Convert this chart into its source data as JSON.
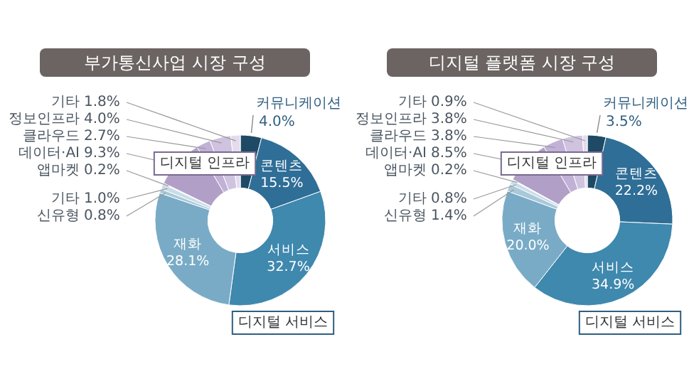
{
  "chart_data": [
    {
      "type": "donut",
      "title": "부가통신사업 시장 구성",
      "categories": [
        "커뮤니케이션",
        "콘텐츠",
        "서비스",
        "재화",
        "신유형",
        "기타",
        "앱마켓",
        "데이터·AI",
        "클라우드",
        "정보인프라",
        "기타"
      ],
      "values": [
        4.0,
        15.5,
        32.7,
        28.1,
        0.8,
        1.0,
        0.2,
        9.3,
        2.7,
        4.0,
        1.8
      ],
      "value_labels": [
        "4.0%",
        "15.5%",
        "32.7%",
        "28.1%",
        "0.8%",
        "1.0%",
        "0.2%",
        "9.3%",
        "2.7%",
        "4.0%",
        "1.8%"
      ],
      "colors": [
        "#1f4a66",
        "#2f6e96",
        "#3f88ae",
        "#79abc6",
        "#a9c9da",
        "#c8dde8",
        "#ece6f2",
        "#b29fc8",
        "#c1b1d6",
        "#cfc3e0",
        "#e4dced"
      ],
      "legend": false,
      "annotations": [
        "디지털 인프라",
        "디지털 서비스"
      ]
    },
    {
      "type": "donut",
      "title": "디지털 플랫폼 시장 구성",
      "categories": [
        "커뮤니케이션",
        "콘텐츠",
        "서비스",
        "재화",
        "신유형",
        "기타",
        "앱마켓",
        "데이터·AI",
        "클라우드",
        "정보인프라",
        "기타"
      ],
      "values": [
        3.5,
        22.2,
        34.9,
        20.0,
        1.4,
        0.8,
        0.2,
        8.5,
        3.8,
        3.8,
        0.9
      ],
      "value_labels": [
        "3.5%",
        "22.2%",
        "34.9%",
        "20.0%",
        "1.4%",
        "0.8%",
        "0.2%",
        "8.5%",
        "3.8%",
        "3.8%",
        "0.9%"
      ],
      "colors": [
        "#1f4a66",
        "#2f6e96",
        "#3f88ae",
        "#79abc6",
        "#a9c9da",
        "#c8dde8",
        "#ece6f2",
        "#b29fc8",
        "#c1b1d6",
        "#cfc3e0",
        "#e4dced"
      ],
      "legend": false,
      "annotations": [
        "디지털 인프라",
        "디지털 서비스"
      ]
    }
  ]
}
